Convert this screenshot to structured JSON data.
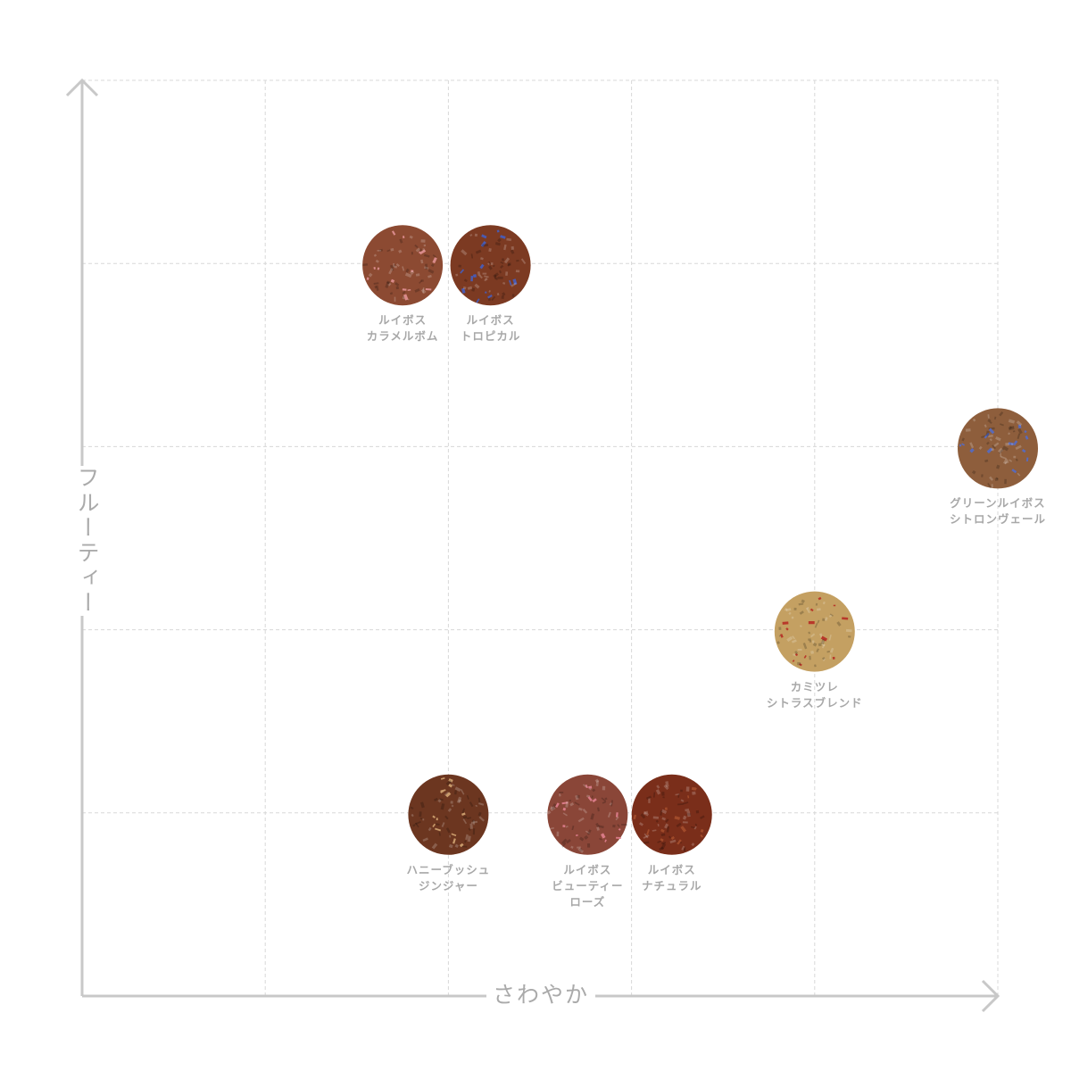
{
  "chart_data": {
    "type": "scatter",
    "xlabel": "さわやか",
    "ylabel": "フルーティー",
    "xlim": [
      0,
      5
    ],
    "ylim": [
      0,
      5
    ],
    "grid": true,
    "points": [
      {
        "name": [
          "ルイボス",
          "カラメルボム"
        ],
        "x": 1.75,
        "y": 4,
        "color": "#8c4a32",
        "accent": "#d98a8a"
      },
      {
        "name": [
          "ルイボス",
          "トロピカル"
        ],
        "x": 2.23,
        "y": 4,
        "color": "#7c3a22",
        "accent": "#4a5ab0"
      },
      {
        "name": [
          "グリーンルイボス",
          "シトロンヴェール"
        ],
        "x": 5,
        "y": 3,
        "color": "#8e5e3c",
        "accent": "#5a6ab8"
      },
      {
        "name": [
          "カミツレ",
          "シトラスブレンド"
        ],
        "x": 4,
        "y": 2,
        "color": "#c4a062",
        "accent": "#b8382a"
      },
      {
        "name": [
          "ハニーブッシュ",
          "ジンジャー"
        ],
        "x": 2,
        "y": 1,
        "color": "#6c3620",
        "accent": "#c89a6a"
      },
      {
        "name": [
          "ルイボス",
          "ビューティー",
          "ローズ"
        ],
        "x": 2.76,
        "y": 1,
        "color": "#8a4638",
        "accent": "#d87a86"
      },
      {
        "name": [
          "ルイボス",
          "ナチュラル"
        ],
        "x": 3.22,
        "y": 1,
        "color": "#7a2e1a",
        "accent": "#a04a2a"
      }
    ]
  }
}
